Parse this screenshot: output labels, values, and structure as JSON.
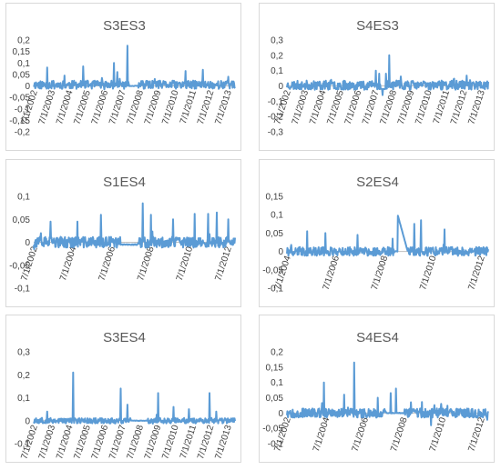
{
  "chart_data": [
    {
      "type": "line",
      "title": "S3ES3",
      "color": "#5b9bd5",
      "yticks": [
        "0,2",
        "0,15",
        "0,1",
        "0,05",
        "0",
        "-0,05",
        "-0,1",
        "-0,15",
        "-0,2"
      ],
      "ylim": [
        -0.2,
        0.2
      ],
      "xticks": [
        "7/1/2002",
        "7/1/2003",
        "7/1/2004",
        "7/1/2005",
        "7/1/2006",
        "7/1/2007",
        "7/1/2008",
        "7/1/2009",
        "7/1/2010",
        "7/1/2011",
        "7/1/2012",
        "7/1/2013"
      ],
      "xrange": [
        2002.5,
        2014.3
      ],
      "baseline": 0.005,
      "amplitude": 0.018,
      "seed": 11,
      "spikes": [
        [
          2003.3,
          0.08
        ],
        [
          2004.3,
          0.045
        ],
        [
          2005.4,
          0.085
        ],
        [
          2007.2,
          0.1
        ],
        [
          2007.4,
          0.06
        ],
        [
          2008.0,
          0.175
        ],
        [
          2011.4,
          0.065
        ],
        [
          2012.4,
          0.07
        ],
        [
          2013.9,
          0.04
        ]
      ],
      "flat": [
        [
          2008.1,
          2008.6,
          0.0
        ]
      ]
    },
    {
      "type": "line",
      "title": "S4ES3",
      "color": "#5b9bd5",
      "yticks": [
        "0,3",
        "0,2",
        "0,1",
        "0",
        "-0,1",
        "-0,2",
        "-0,3"
      ],
      "ylim": [
        -0.3,
        0.3
      ],
      "xticks": [
        "7/1/2002",
        "7/1/2003",
        "7/1/2004",
        "7/1/2005",
        "7/1/2006",
        "7/1/2007",
        "7/1/2008",
        "7/1/2009",
        "7/1/2010",
        "7/1/2011",
        "7/1/2012",
        "7/1/2013"
      ],
      "xrange": [
        2002.5,
        2014.3
      ],
      "baseline": 0.005,
      "amplitude": 0.03,
      "seed": 23,
      "spikes": [
        [
          2007.7,
          0.1
        ],
        [
          2007.9,
          0.08
        ],
        [
          2008.1,
          -0.06
        ],
        [
          2008.5,
          0.2
        ],
        [
          2008.3,
          0.08
        ],
        [
          2005.1,
          0.04
        ]
      ],
      "flat": [
        [
          2008.0,
          2008.3,
          -0.02
        ]
      ]
    },
    {
      "type": "line",
      "title": "S1ES4",
      "color": "#5b9bd5",
      "yticks": [
        "0,1",
        "0,05",
        "0",
        "-0,05",
        "-0,1"
      ],
      "ylim": [
        -0.1,
        0.1
      ],
      "xticks": [
        "7/1/2002",
        "7/1/2004",
        "7/1/2006",
        "7/1/2008",
        "7/1/2010",
        "7/1/2012"
      ],
      "xrange": [
        2002.0,
        2014.0
      ],
      "baseline": 0.0,
      "amplitude": 0.012,
      "seed": 37,
      "spikes": [
        [
          2003.0,
          0.045
        ],
        [
          2004.6,
          0.045
        ],
        [
          2006.0,
          0.06
        ],
        [
          2008.5,
          0.085
        ],
        [
          2009.0,
          0.06
        ],
        [
          2010.3,
          0.05
        ],
        [
          2011.6,
          0.062
        ],
        [
          2012.4,
          0.062
        ],
        [
          2012.9,
          0.065
        ],
        [
          2013.6,
          0.05
        ]
      ],
      "flat": [
        [
          2007.2,
          2008.2,
          -0.005
        ]
      ]
    },
    {
      "type": "line",
      "title": "S2ES4",
      "color": "#5b9bd5",
      "yticks": [
        "0,15",
        "0,1",
        "0,05",
        "0",
        "-0,05",
        "-0,1"
      ],
      "ylim": [
        -0.1,
        0.15
      ],
      "xticks": [
        "7/1/2004",
        "7/1/2006",
        "7/1/2008",
        "7/1/2010",
        "7/1/2012"
      ],
      "xrange": [
        2002.0,
        2014.0
      ],
      "baseline": 0.0,
      "amplitude": 0.012,
      "seed": 41,
      "spikes": [
        [
          2003.2,
          0.055
        ],
        [
          2004.3,
          0.05
        ],
        [
          2006.2,
          0.045
        ],
        [
          2008.3,
          0.035
        ],
        [
          2009.6,
          0.075
        ],
        [
          2010.0,
          0.085
        ],
        [
          2011.4,
          0.06
        ],
        [
          2009.2,
          -0.05
        ]
      ],
      "flat": [
        [
          2008.4,
          2009.1,
          0.0
        ]
      ],
      "ramp": [
        [
          2008.6,
          0.1
        ],
        [
          2009.2,
          0.0
        ]
      ]
    },
    {
      "type": "line",
      "title": "S3ES4",
      "color": "#5b9bd5",
      "yticks": [
        "0,3",
        "0,2",
        "0,1",
        "0",
        "-0,1"
      ],
      "ylim": [
        -0.1,
        0.3
      ],
      "xticks": [
        "7/1/2002",
        "7/1/2003",
        "7/1/2004",
        "7/1/2005",
        "7/1/2006",
        "7/1/2007",
        "7/1/2008",
        "7/1/2009",
        "7/1/2010",
        "7/1/2011",
        "7/1/2012",
        "7/1/2013"
      ],
      "xrange": [
        2002.5,
        2014.3
      ],
      "baseline": 0.0,
      "amplitude": 0.012,
      "seed": 53,
      "spikes": [
        [
          2003.3,
          0.04
        ],
        [
          2004.8,
          0.21
        ],
        [
          2007.6,
          0.14
        ],
        [
          2008.0,
          0.07
        ],
        [
          2009.8,
          0.12
        ],
        [
          2010.7,
          0.06
        ],
        [
          2011.6,
          0.05
        ],
        [
          2012.8,
          0.12
        ],
        [
          2013.2,
          0.04
        ]
      ],
      "flat": [
        [
          2008.2,
          2009.2,
          0.0
        ]
      ]
    },
    {
      "type": "line",
      "title": "S4ES4",
      "color": "#5b9bd5",
      "yticks": [
        "0,2",
        "0,15",
        "0,1",
        "0,05",
        "0",
        "-0,05",
        "-0,1"
      ],
      "ylim": [
        -0.1,
        0.2
      ],
      "xticks": [
        "7/1/2002",
        "7/1/2004",
        "7/1/2006",
        "7/1/2008",
        "7/1/2010",
        "7/1/2012"
      ],
      "xrange": [
        2002.0,
        2014.0
      ],
      "baseline": 0.0,
      "amplitude": 0.015,
      "seed": 67,
      "spikes": [
        [
          2004.2,
          0.1
        ],
        [
          2005.4,
          0.06
        ],
        [
          2006.0,
          0.165
        ],
        [
          2007.4,
          0.05
        ],
        [
          2008.2,
          0.065
        ],
        [
          2008.5,
          0.08
        ],
        [
          2009.4,
          0.035
        ],
        [
          2010.6,
          -0.04
        ],
        [
          2011.2,
          0.03
        ]
      ],
      "flat": [
        [
          2007.9,
          2009.0,
          0.0
        ]
      ]
    }
  ]
}
